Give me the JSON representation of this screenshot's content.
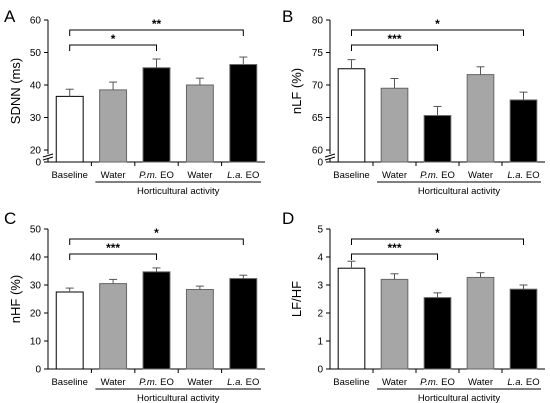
{
  "figure": {
    "group_label": "Horticultural activity"
  },
  "chart_data": [
    {
      "panel": "A",
      "type": "bar",
      "ylabel": "SDNN (ms)",
      "categories": [
        "Baseline",
        "Water",
        "P.m. EO",
        "Water",
        "L.a. EO"
      ],
      "category_italic_part": [
        "",
        "",
        "P.m.",
        "",
        "L.a."
      ],
      "values": [
        36.5,
        38.5,
        45.3,
        40.0,
        46.3
      ],
      "errors": [
        2.2,
        2.4,
        2.7,
        2.1,
        2.3
      ],
      "bar_colors": [
        "#ffffff",
        "#a6a6a6",
        "#000000",
        "#a6a6a6",
        "#000000"
      ],
      "ylim": [
        20,
        60
      ],
      "axis_break": true,
      "yticks": [
        0,
        20,
        30,
        40,
        50,
        60
      ],
      "significance": [
        {
          "from": 0,
          "to": 2,
          "label": "*"
        },
        {
          "from": 0,
          "to": 4,
          "label": "**"
        }
      ]
    },
    {
      "panel": "B",
      "type": "bar",
      "ylabel": "nLF (%)",
      "categories": [
        "Baseline",
        "Water",
        "P.m. EO",
        "Water",
        "L.a. EO"
      ],
      "category_italic_part": [
        "",
        "",
        "P.m.",
        "",
        "L.a."
      ],
      "values": [
        72.5,
        69.5,
        65.3,
        71.6,
        67.7
      ],
      "errors": [
        1.4,
        1.5,
        1.4,
        1.2,
        1.2
      ],
      "bar_colors": [
        "#ffffff",
        "#a6a6a6",
        "#000000",
        "#a6a6a6",
        "#000000"
      ],
      "ylim": [
        60,
        80
      ],
      "axis_break": true,
      "yticks": [
        0,
        60,
        65,
        70,
        75,
        80
      ],
      "significance": [
        {
          "from": 0,
          "to": 2,
          "label": "***"
        },
        {
          "from": 0,
          "to": 4,
          "label": "*"
        }
      ]
    },
    {
      "panel": "C",
      "type": "bar",
      "ylabel": "nHF (%)",
      "categories": [
        "Baseline",
        "Water",
        "P.m. EO",
        "Water",
        "L.a. EO"
      ],
      "category_italic_part": [
        "",
        "",
        "P.m.",
        "",
        "L.a."
      ],
      "values": [
        27.5,
        30.5,
        34.7,
        28.4,
        32.3
      ],
      "errors": [
        1.4,
        1.5,
        1.4,
        1.2,
        1.2
      ],
      "bar_colors": [
        "#ffffff",
        "#a6a6a6",
        "#000000",
        "#a6a6a6",
        "#000000"
      ],
      "ylim": [
        0,
        50
      ],
      "axis_break": false,
      "yticks": [
        0,
        10,
        20,
        30,
        40,
        50
      ],
      "significance": [
        {
          "from": 0,
          "to": 2,
          "label": "***"
        },
        {
          "from": 0,
          "to": 4,
          "label": "*"
        }
      ]
    },
    {
      "panel": "D",
      "type": "bar",
      "ylabel": "LF/HF",
      "categories": [
        "Baseline",
        "Water",
        "P.m. EO",
        "Water",
        "L.a. EO"
      ],
      "category_italic_part": [
        "",
        "",
        "P.m.",
        "",
        "L.a."
      ],
      "values": [
        3.6,
        3.2,
        2.55,
        3.27,
        2.85
      ],
      "errors": [
        0.25,
        0.2,
        0.17,
        0.17,
        0.15
      ],
      "bar_colors": [
        "#ffffff",
        "#a6a6a6",
        "#000000",
        "#a6a6a6",
        "#000000"
      ],
      "ylim": [
        0,
        5
      ],
      "axis_break": false,
      "yticks": [
        0,
        1,
        2,
        3,
        4,
        5
      ],
      "significance": [
        {
          "from": 0,
          "to": 2,
          "label": "***"
        },
        {
          "from": 0,
          "to": 4,
          "label": "*"
        }
      ]
    }
  ]
}
